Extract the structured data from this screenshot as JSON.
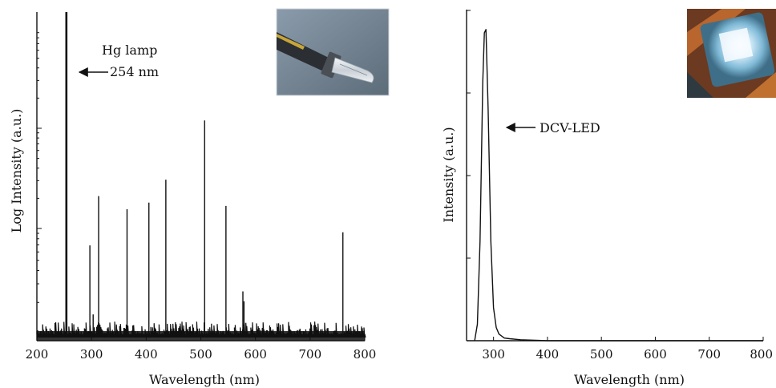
{
  "chart_data": [
    {
      "type": "line",
      "title": "",
      "xlabel": "Wavelength (nm)",
      "ylabel": "Log Intensity (a.u.)",
      "xlim": [
        200,
        800
      ],
      "x_ticks": [
        200,
        300,
        400,
        500,
        600,
        700,
        800
      ],
      "y_scale": "log",
      "y_tick_labels": false,
      "grid": false,
      "series": [
        {
          "name": "",
          "style": "emission lines",
          "x": [
            254,
            297,
            303,
            313,
            365,
            405,
            436,
            507,
            546,
            577,
            579,
            760
          ],
          "y": [
            1.0,
            0.29,
            0.08,
            0.44,
            0.4,
            0.42,
            0.49,
            0.67,
            0.41,
            0.15,
            0.12,
            0.33
          ]
        }
      ],
      "annotations": [
        {
          "text": "Hg lamp",
          "points_to_x": 254
        },
        {
          "text": "254 nm",
          "points_to_x": 254
        }
      ],
      "inset": {
        "description": "Hg lamp",
        "icon": "lamp-photo"
      }
    },
    {
      "type": "line",
      "title": "",
      "xlabel": "Wavelength (nm)",
      "ylabel": "Intensity (a.u.)",
      "xlim": [
        250,
        800
      ],
      "x_ticks": [
        300,
        400,
        500,
        600,
        700,
        800
      ],
      "y_tick_labels": false,
      "grid": false,
      "series": [
        {
          "name": "",
          "x": [
            265,
            270,
            275,
            280,
            283,
            286,
            290,
            295,
            300,
            305,
            310,
            320,
            330,
            350,
            400,
            500,
            600,
            700,
            800
          ],
          "y": [
            0.0,
            0.05,
            0.3,
            0.78,
            0.93,
            0.94,
            0.7,
            0.3,
            0.1,
            0.04,
            0.02,
            0.008,
            0.006,
            0.003,
            0.0,
            0.0,
            0.0,
            0.0,
            0.0
          ]
        }
      ],
      "annotations": [
        {
          "text": "DCV-LED",
          "points_to_x": 283
        }
      ],
      "inset": {
        "description": "DCV-LED",
        "icon": "led-photo"
      }
    }
  ]
}
